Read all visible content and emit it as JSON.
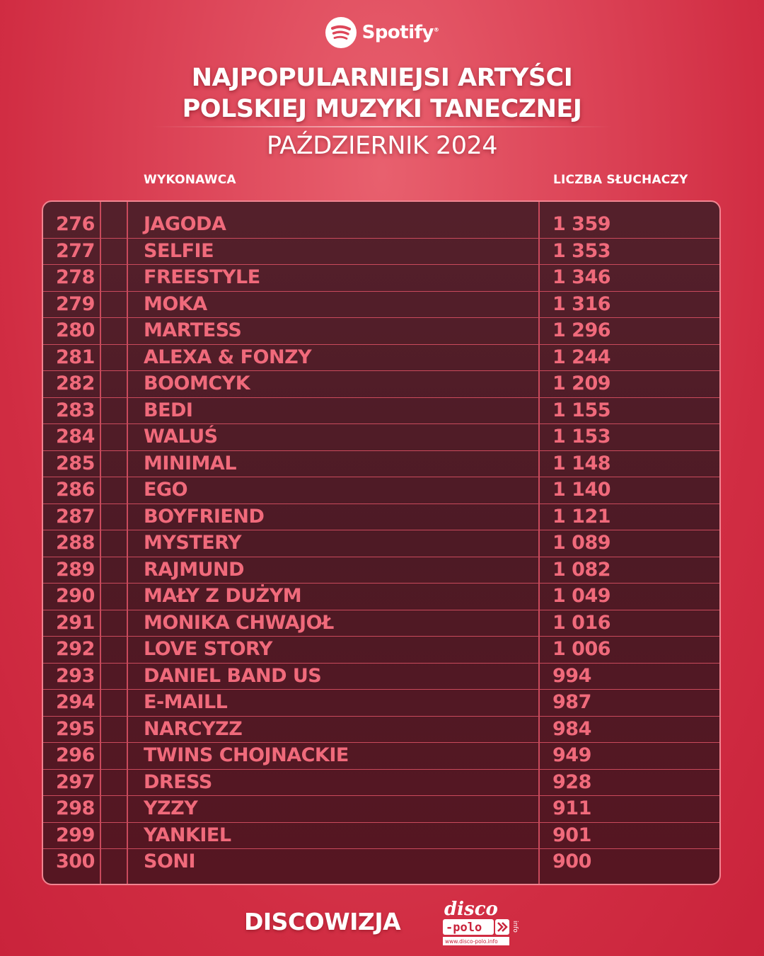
{
  "brand": {
    "name": "Spotify",
    "logo_icon": "spotify-logo-icon"
  },
  "title": {
    "line1": "NAJPOPULARNIEJSI ARTYŚCI",
    "line2": "POLSKIEJ MUZYKI TANECZNEJ"
  },
  "subtitle": "PAŹDZIERNIK 2024",
  "columns": {
    "artist": "WYKONAWCA",
    "listeners": "LICZBA SŁUCHACZY"
  },
  "rows": [
    {
      "rank": "276",
      "artist": "JAGODA",
      "listeners": "1 359"
    },
    {
      "rank": "277",
      "artist": "SELFIE",
      "listeners": "1 353"
    },
    {
      "rank": "278",
      "artist": "FREESTYLE",
      "listeners": "1 346"
    },
    {
      "rank": "279",
      "artist": "MOKA",
      "listeners": "1 316"
    },
    {
      "rank": "280",
      "artist": "MARTESS",
      "listeners": "1 296"
    },
    {
      "rank": "281",
      "artist": "ALEXA & FONZY",
      "listeners": "1 244"
    },
    {
      "rank": "282",
      "artist": "BOOMCYK",
      "listeners": "1 209"
    },
    {
      "rank": "283",
      "artist": "BEDI",
      "listeners": "1 155"
    },
    {
      "rank": "284",
      "artist": "WALUŚ",
      "listeners": "1 153"
    },
    {
      "rank": "285",
      "artist": "MINIMAL",
      "listeners": "1 148"
    },
    {
      "rank": "286",
      "artist": "EGO",
      "listeners": "1 140"
    },
    {
      "rank": "287",
      "artist": "BOYFRIEND",
      "listeners": "1 121"
    },
    {
      "rank": "288",
      "artist": "MYSTERY",
      "listeners": "1 089"
    },
    {
      "rank": "289",
      "artist": "RAJMUND",
      "listeners": "1 082"
    },
    {
      "rank": "290",
      "artist": "MAŁY Z DUŻYM",
      "listeners": "1 049"
    },
    {
      "rank": "291",
      "artist": "MONIKA CHWAJOŁ",
      "listeners": "1 016"
    },
    {
      "rank": "292",
      "artist": "LOVE STORY",
      "listeners": "1 006"
    },
    {
      "rank": "293",
      "artist": "DANIEL BAND US",
      "listeners": "994"
    },
    {
      "rank": "294",
      "artist": "E-MAILL",
      "listeners": "987"
    },
    {
      "rank": "295",
      "artist": "NARCYZZ",
      "listeners": "984"
    },
    {
      "rank": "296",
      "artist": "TWINS CHOJNACKIE",
      "listeners": "949"
    },
    {
      "rank": "297",
      "artist": "DRESS",
      "listeners": "928"
    },
    {
      "rank": "298",
      "artist": "YZZY",
      "listeners": "911"
    },
    {
      "rank": "299",
      "artist": "YANKIEL",
      "listeners": "901"
    },
    {
      "rank": "300",
      "artist": "SONI",
      "listeners": "900"
    }
  ],
  "footer": {
    "left": "DISCOWIZJA",
    "logo": {
      "top": "disco",
      "middle": "-polo",
      "side": "info",
      "url": "www.disco-polo.info"
    }
  },
  "colors": {
    "background": "#dd4659",
    "table_bg": "#4e1a25",
    "row_text": "#f06a7b",
    "grid_line": "#c94a5c",
    "header_text": "#ffffff"
  }
}
